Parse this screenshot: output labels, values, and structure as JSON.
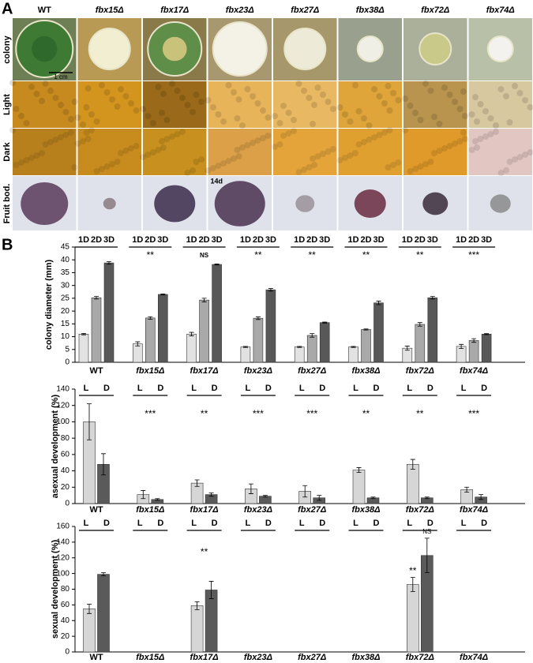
{
  "panel_a": {
    "label": "A",
    "columns": [
      "WT",
      "fbx15Δ",
      "fbx17Δ",
      "fbx23Δ",
      "fbx27Δ",
      "fbx38Δ",
      "fbx72Δ",
      "fbx74Δ"
    ],
    "rows": [
      "colony",
      "Light",
      "Dark",
      "Fruit bod."
    ],
    "scale_bar": "1 cm",
    "annotation": "14d"
  },
  "panel_b": {
    "label": "B"
  },
  "chart_data": [
    {
      "type": "bar",
      "y_label": "colony diameter (mm)",
      "categories": [
        "WT",
        "fbx15Δ",
        "fbx17Δ",
        "fbx23Δ",
        "fbx27Δ",
        "fbx38Δ",
        "fbx72Δ",
        "fbx74Δ"
      ],
      "series": [
        {
          "name": "1D",
          "color": "#e2e2e2",
          "values": [
            11,
            7.2,
            11,
            6,
            6,
            6,
            5.5,
            6.2
          ],
          "errors": [
            0.3,
            0.8,
            0.7,
            0.2,
            0.2,
            0.2,
            0.8,
            0.8
          ]
        },
        {
          "name": "2D",
          "color": "#a9a9a9",
          "values": [
            25.2,
            17.3,
            24.3,
            17.2,
            10.5,
            12.8,
            14.8,
            8.5
          ],
          "errors": [
            0.5,
            0.5,
            0.7,
            0.5,
            0.7,
            0.2,
            0.7,
            0.7
          ]
        },
        {
          "name": "3D",
          "color": "#585858",
          "values": [
            38.8,
            26.5,
            38.2,
            28.3,
            15.5,
            23.2,
            25.2,
            11
          ],
          "errors": [
            0.5,
            0.2,
            0.2,
            0.5,
            0.2,
            0.7,
            0.5,
            0.2
          ]
        }
      ],
      "annotations": [
        null,
        "**",
        "NS",
        "**",
        "**",
        "**",
        "**",
        "***"
      ],
      "ylim": [
        0,
        45
      ],
      "yticks": [
        0,
        5,
        10,
        15,
        20,
        25,
        30,
        35,
        40,
        45
      ]
    },
    {
      "type": "bar",
      "y_label": "asexual development (%)",
      "categories": [
        "WT",
        "fbx15Δ",
        "fbx17Δ",
        "fbx23Δ",
        "fbx27Δ",
        "fbx38Δ",
        "fbx72Δ",
        "fbx74Δ"
      ],
      "series": [
        {
          "name": "L",
          "color": "#d6d6d6",
          "values": [
            100,
            11,
            25,
            18,
            15,
            41,
            48,
            17
          ],
          "errors": [
            22,
            5,
            4,
            6,
            7,
            3,
            6,
            3
          ]
        },
        {
          "name": "D",
          "color": "#5a5a5a",
          "values": [
            48,
            5,
            11,
            9,
            7,
            7,
            7,
            8
          ],
          "errors": [
            13,
            1,
            2,
            1,
            3,
            1,
            1,
            3
          ]
        }
      ],
      "annotations": [
        null,
        "***",
        "**",
        "***",
        "***",
        "**",
        "**",
        "***"
      ],
      "ylim": [
        0,
        140
      ],
      "yticks": [
        0,
        20,
        40,
        60,
        80,
        100,
        120,
        140
      ]
    },
    {
      "type": "bar",
      "y_label": "sexual development (%)",
      "categories": [
        "WT",
        "fbx15Δ",
        "fbx17Δ",
        "fbx23Δ",
        "fbx27Δ",
        "fbx38Δ",
        "fbx72Δ",
        "fbx74Δ"
      ],
      "series": [
        {
          "name": "L",
          "color": "#d6d6d6",
          "values": [
            55,
            null,
            59,
            null,
            null,
            null,
            86,
            null
          ],
          "errors": [
            6,
            null,
            5,
            null,
            null,
            null,
            9,
            null
          ],
          "annotations": [
            null,
            null,
            null,
            null,
            null,
            null,
            "**",
            null
          ]
        },
        {
          "name": "D",
          "color": "#5a5a5a",
          "values": [
            99,
            null,
            79,
            null,
            null,
            null,
            123,
            null
          ],
          "errors": [
            2,
            null,
            11,
            null,
            null,
            null,
            22,
            null
          ],
          "annotations": [
            null,
            null,
            null,
            null,
            null,
            null,
            "NS",
            null
          ]
        }
      ],
      "annotations": [
        null,
        null,
        "**",
        null,
        null,
        null,
        null,
        null
      ],
      "ylim": [
        0,
        160
      ],
      "yticks": [
        0,
        20,
        40,
        60,
        80,
        100,
        120,
        140,
        160
      ]
    }
  ]
}
